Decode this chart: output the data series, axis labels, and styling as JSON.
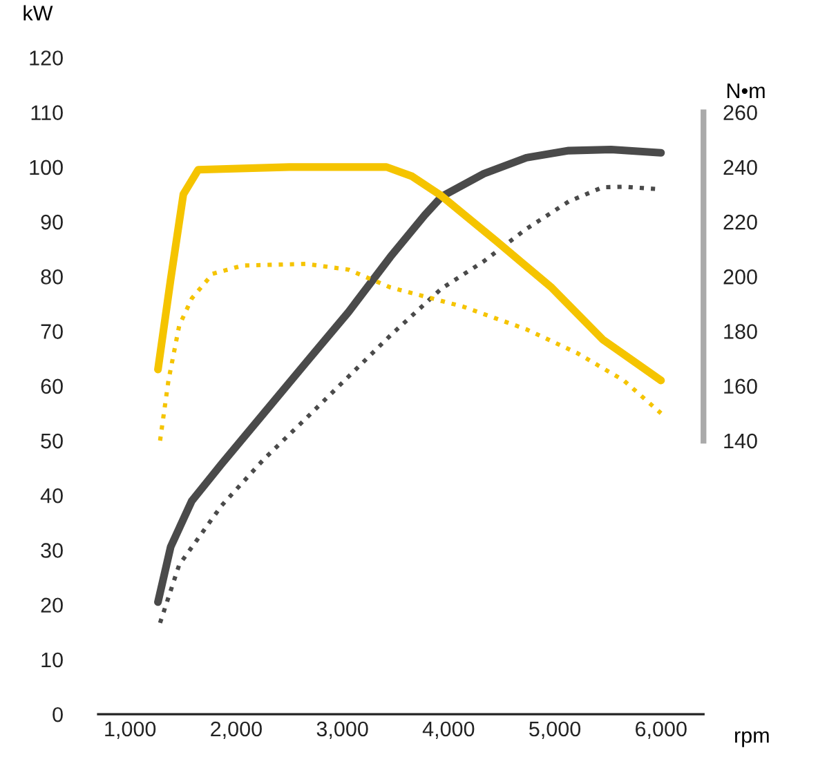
{
  "chart_data": {
    "type": "line",
    "xlabel": "rpm",
    "ylabel": "kW",
    "y2label": "N•m",
    "xlim": [
      700,
      6400
    ],
    "xticks": [
      {
        "value": 1000,
        "label": "1,000"
      },
      {
        "value": 2000,
        "label": "2,000"
      },
      {
        "value": 3000,
        "label": "3,000"
      },
      {
        "value": 4000,
        "label": "4,000"
      },
      {
        "value": 5000,
        "label": "5,000"
      },
      {
        "value": 6000,
        "label": "6,000"
      }
    ],
    "ylim": [
      0,
      120
    ],
    "yticks": [
      0,
      10,
      20,
      30,
      40,
      50,
      60,
      70,
      80,
      90,
      100,
      110,
      120
    ],
    "y2lim": [
      140,
      260
    ],
    "y2ticks": [
      140,
      160,
      180,
      200,
      220,
      240,
      260
    ],
    "grid": false,
    "legend": false,
    "marker": "none",
    "series": [
      {
        "color": "#f5c400",
        "axis": "y2",
        "line_style": "solid",
        "x": [
          1263,
          1383,
          1502,
          1642,
          2500,
          3416,
          3656,
          3931,
          4457,
          4971,
          5450,
          6000
        ],
        "values": [
          166,
          199,
          230,
          239,
          240,
          240,
          236.6,
          229.5,
          212.7,
          195.9,
          177,
          162
        ]
      },
      {
        "color": "#f5c400",
        "axis": "y2",
        "line_style": "dotted",
        "x": [
          1283,
          1362,
          1463,
          1582,
          1778,
          2061,
          2659,
          3057,
          3452,
          4134,
          4732,
          5211,
          5649,
          6000
        ],
        "values": [
          140,
          162,
          182,
          192,
          201,
          204,
          204.6,
          202.5,
          196,
          189,
          180.7,
          172,
          162,
          150
        ]
      },
      {
        "color": "#4a4a4a",
        "axis": "y",
        "line_style": "solid",
        "x": [
          1263,
          1383,
          1582,
          1861,
          2260,
          2659,
          3057,
          3452,
          3775,
          3934,
          4333,
          4732,
          5131,
          5530,
          6000
        ],
        "values": [
          20.5,
          30.6,
          39,
          45.7,
          55,
          64.3,
          73.5,
          83.6,
          91.2,
          94.6,
          98.8,
          101.7,
          103,
          103.2,
          102.6
        ]
      },
      {
        "color": "#4a4a4a",
        "axis": "y",
        "line_style": "dotted",
        "x": [
          1283,
          1463,
          1861,
          2260,
          2659,
          3057,
          3456,
          3934,
          4333,
          4732,
          5131,
          5450,
          5649,
          5947
        ],
        "values": [
          16.7,
          27.3,
          38.1,
          46.6,
          54.1,
          61.7,
          69.3,
          77.8,
          82.8,
          88.7,
          93.7,
          96.3,
          96.4,
          96
        ]
      }
    ]
  }
}
